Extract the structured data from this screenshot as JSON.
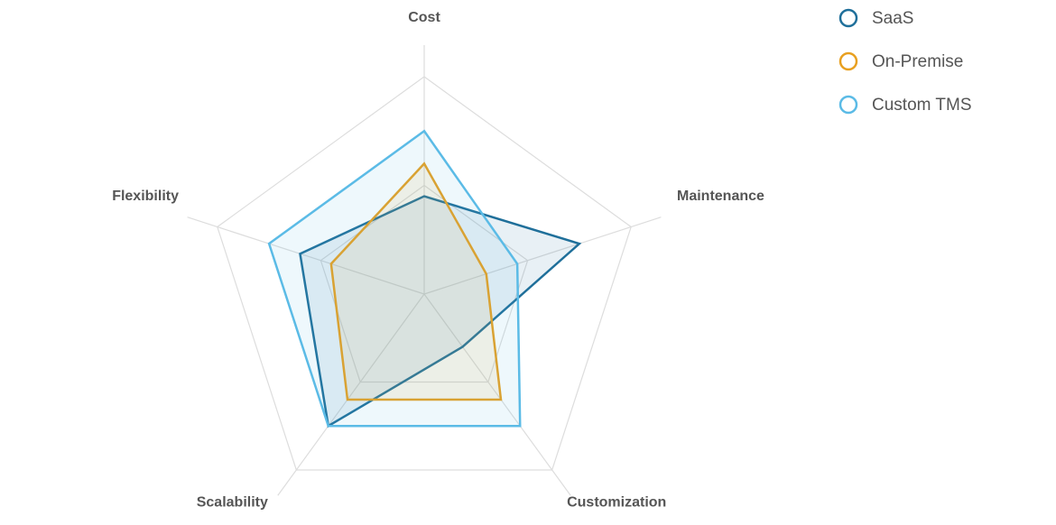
{
  "chart_data": {
    "type": "radar",
    "categories": [
      "Cost",
      "Maintenance",
      "Customization",
      "Scalability",
      "Flexibility"
    ],
    "rlim": [
      0,
      10
    ],
    "rticks": [
      5,
      10
    ],
    "grid": true,
    "legend": "top-right",
    "series": [
      {
        "name": "SaaS",
        "color": "#1f6f9a",
        "values": [
          4.5,
          7.5,
          3,
          7.5,
          6
        ]
      },
      {
        "name": "On-Premise",
        "color": "#e8a020",
        "values": [
          6,
          3,
          6,
          6,
          4.5
        ]
      },
      {
        "name": "Custom TMS",
        "color": "#5bbbe6",
        "values": [
          7.5,
          4.5,
          7.5,
          7.5,
          7.5
        ]
      }
    ]
  }
}
